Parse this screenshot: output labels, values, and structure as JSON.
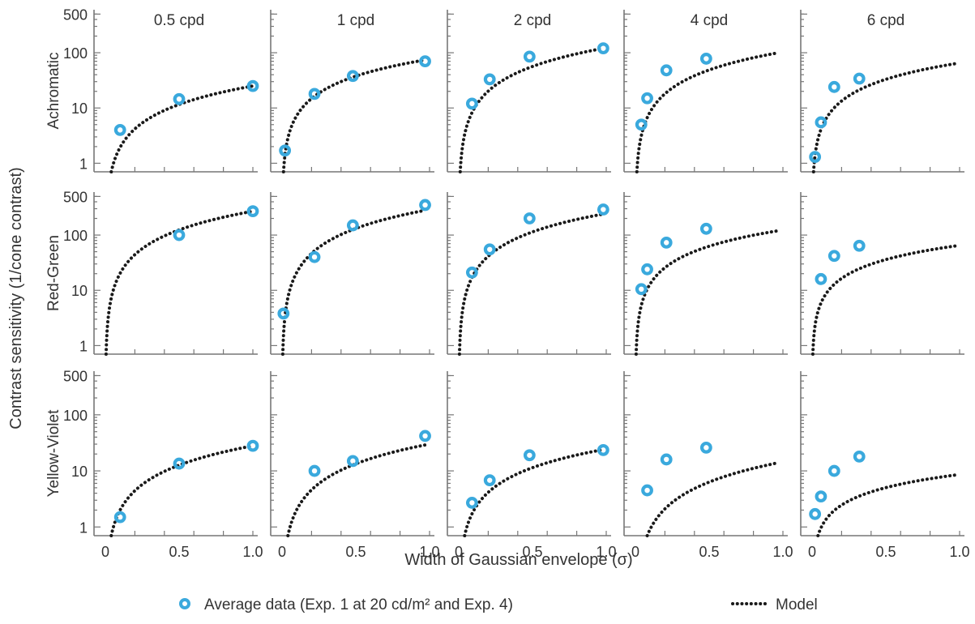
{
  "chart_data": {
    "type": "scatter",
    "ylabel": "Contrast sensitivity (1/cone contrast)",
    "xlabel": "Width of Gaussian envelope (σ)",
    "yscale": "log",
    "ylim": [
      0.7,
      600
    ],
    "xlim": [
      0,
      1.0
    ],
    "y_ticks": [
      "1",
      "10",
      "100",
      "500"
    ],
    "x_ticks": [
      "0",
      "0.5",
      "1.0"
    ],
    "x_tick_values": [
      0,
      0.5,
      1.0
    ],
    "y_tick_values": [
      1,
      10,
      100,
      500
    ],
    "columns": [
      "0.5 cpd",
      "1 cpd",
      "2 cpd",
      "4 cpd",
      "6 cpd"
    ],
    "rows": [
      "Achromatic",
      "Red-Green",
      "Yellow-Violet"
    ],
    "legend": {
      "data_label": "Average data (Exp. 1 at 20 cd/m² and Exp. 4)",
      "model_label": "Model"
    },
    "colors": {
      "data": "#3aa9dd",
      "model": "#1a1a1a"
    },
    "panels": [
      {
        "row": "Achromatic",
        "column": "0.5 cpd",
        "data_x": [
          0.1,
          0.5,
          1.0
        ],
        "data_y": [
          4,
          14.5,
          25
        ],
        "model_x": [
          0.04,
          1.0
        ],
        "model_y": [
          0.7,
          25
        ]
      },
      {
        "row": "Achromatic",
        "column": "1 cpd",
        "data_x": [
          0.02,
          0.22,
          0.48,
          0.97
        ],
        "data_y": [
          1.7,
          18,
          38,
          70
        ],
        "model_x": [
          0.01,
          0.97
        ],
        "model_y": [
          0.7,
          74
        ]
      },
      {
        "row": "Achromatic",
        "column": "2 cpd",
        "data_x": [
          0.09,
          0.21,
          0.48,
          0.98
        ],
        "data_y": [
          12,
          33,
          85,
          120
        ],
        "model_x": [
          0.01,
          0.98
        ],
        "model_y": [
          0.7,
          120
        ]
      },
      {
        "row": "Achromatic",
        "column": "4 cpd",
        "data_x": [
          0.04,
          0.08,
          0.21,
          0.48
        ],
        "data_y": [
          5,
          15,
          48,
          78
        ],
        "model_x": [
          0.01,
          0.97
        ],
        "model_y": [
          0.7,
          100
        ]
      },
      {
        "row": "Achromatic",
        "column": "6 cpd",
        "data_x": [
          0.02,
          0.06,
          0.15,
          0.32
        ],
        "data_y": [
          1.3,
          5.5,
          24,
          34
        ],
        "model_x": [
          0.01,
          0.98
        ],
        "model_y": [
          0.7,
          64
        ]
      },
      {
        "row": "Red-Green",
        "column": "0.5 cpd",
        "data_x": [
          0.5,
          1.0
        ],
        "data_y": [
          100,
          270
        ],
        "model_x": [
          0.005,
          1.0
        ],
        "model_y": [
          0.7,
          270
        ]
      },
      {
        "row": "Red-Green",
        "column": "1 cpd",
        "data_x": [
          0.01,
          0.22,
          0.48,
          0.97
        ],
        "data_y": [
          3.8,
          40,
          150,
          350
        ],
        "model_x": [
          0.005,
          0.97
        ],
        "model_y": [
          0.7,
          280
        ]
      },
      {
        "row": "Red-Green",
        "column": "2 cpd",
        "data_x": [
          0.09,
          0.21,
          0.48,
          0.98
        ],
        "data_y": [
          21,
          55,
          200,
          290
        ],
        "model_x": [
          0.005,
          0.98
        ],
        "model_y": [
          0.7,
          240
        ]
      },
      {
        "row": "Red-Green",
        "column": "4 cpd",
        "data_x": [
          0.04,
          0.08,
          0.21,
          0.48
        ],
        "data_y": [
          10.5,
          24,
          73,
          130
        ],
        "model_x": [
          0.005,
          0.97
        ],
        "model_y": [
          0.7,
          120
        ]
      },
      {
        "row": "Red-Green",
        "column": "6 cpd",
        "data_x": [
          0.06,
          0.15,
          0.32
        ],
        "data_y": [
          16,
          42,
          64
        ],
        "model_x": [
          0.005,
          0.98
        ],
        "model_y": [
          0.7,
          64
        ]
      },
      {
        "row": "Yellow-Violet",
        "column": "0.5 cpd",
        "data_x": [
          0.1,
          0.5,
          1.0
        ],
        "data_y": [
          1.5,
          13.5,
          28
        ],
        "model_x": [
          0.04,
          1.0
        ],
        "model_y": [
          0.7,
          28
        ]
      },
      {
        "row": "Yellow-Violet",
        "column": "1 cpd",
        "data_x": [
          0.22,
          0.48,
          0.97
        ],
        "data_y": [
          10,
          15,
          42
        ],
        "model_x": [
          0.04,
          0.97
        ],
        "model_y": [
          0.7,
          29
        ]
      },
      {
        "row": "Yellow-Violet",
        "column": "2 cpd",
        "data_x": [
          0.09,
          0.21,
          0.48,
          0.98
        ],
        "data_y": [
          2.7,
          6.8,
          19,
          23.5
        ],
        "model_x": [
          0.04,
          0.98
        ],
        "model_y": [
          0.7,
          24
        ]
      },
      {
        "row": "Yellow-Violet",
        "column": "4 cpd",
        "data_x": [
          0.08,
          0.21,
          0.48
        ],
        "data_y": [
          4.5,
          16,
          26
        ],
        "model_x": [
          0.08,
          0.97
        ],
        "model_y": [
          0.7,
          14
        ]
      },
      {
        "row": "Yellow-Violet",
        "column": "6 cpd",
        "data_x": [
          0.02,
          0.06,
          0.15,
          0.32
        ],
        "data_y": [
          1.7,
          3.5,
          10,
          18
        ],
        "model_x": [
          0.04,
          0.98
        ],
        "model_y": [
          0.7,
          8.5
        ]
      }
    ]
  }
}
